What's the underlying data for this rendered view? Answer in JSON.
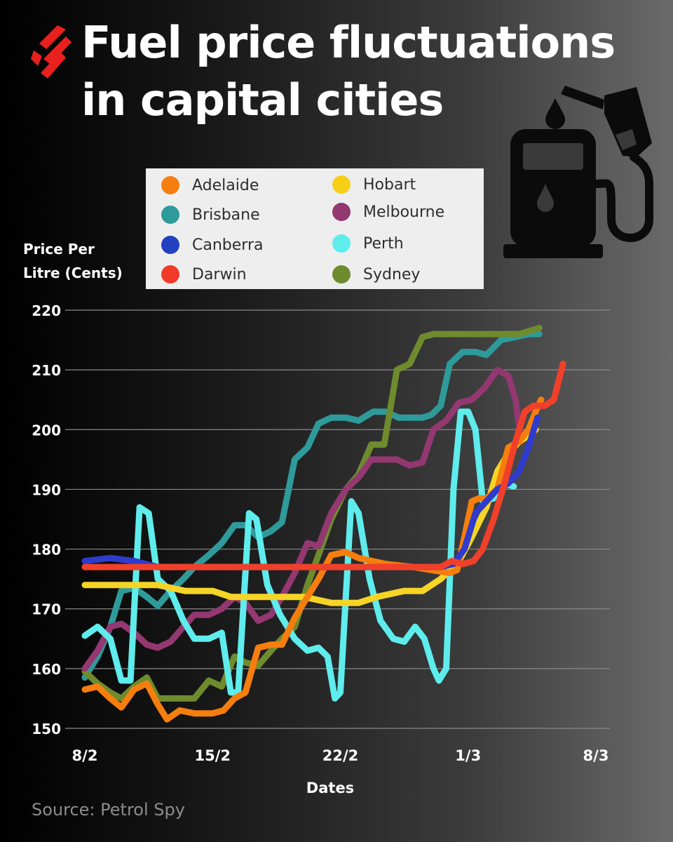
{
  "title": [
    "Fuel price fluctuations",
    "in capital cities"
  ],
  "source": "Source: Petrol Spy",
  "icons": [
    "brand-logo-icon",
    "fuel-pump-icon"
  ],
  "chart_data": {
    "type": "line",
    "ylabel": [
      "Price Per",
      "Litre (Cents)"
    ],
    "xlabel": "Dates",
    "ylim": [
      150,
      220
    ],
    "yticks": [
      150,
      160,
      170,
      180,
      190,
      200,
      210,
      220
    ],
    "xticks": [
      {
        "label": "8/2",
        "day": 0
      },
      {
        "label": "15/2",
        "day": 7
      },
      {
        "label": "22/2",
        "day": 14
      },
      {
        "label": "1/3",
        "day": 21
      },
      {
        "label": "8/3",
        "day": 28
      }
    ],
    "grid": "horizontal",
    "legend_position": "top",
    "series": [
      {
        "name": "Brisbane",
        "color": "#2f9a9a",
        "points": [
          [
            0,
            158.5
          ],
          [
            0.7,
            162
          ],
          [
            1.4,
            167
          ],
          [
            2,
            173
          ],
          [
            2.7,
            173.5
          ],
          [
            3.4,
            172
          ],
          [
            4,
            170.5
          ],
          [
            4.7,
            173
          ],
          [
            5.4,
            175
          ],
          [
            6,
            177
          ],
          [
            6.8,
            179
          ],
          [
            7.5,
            181
          ],
          [
            8.2,
            184
          ],
          [
            8.8,
            184
          ],
          [
            9.5,
            182
          ],
          [
            10.2,
            183
          ],
          [
            10.8,
            184.5
          ],
          [
            11.5,
            195
          ],
          [
            12.2,
            197
          ],
          [
            12.8,
            201
          ],
          [
            13.5,
            202
          ],
          [
            14.3,
            202
          ],
          [
            15,
            201.5
          ],
          [
            15.8,
            203
          ],
          [
            16.5,
            203
          ],
          [
            17.2,
            202
          ],
          [
            17.8,
            202
          ],
          [
            18.5,
            202
          ],
          [
            19,
            202.5
          ],
          [
            19.5,
            204
          ],
          [
            20,
            211
          ],
          [
            20.7,
            213
          ],
          [
            21.4,
            213
          ],
          [
            22,
            212.5
          ],
          [
            22.8,
            215
          ],
          [
            23.6,
            215.5
          ],
          [
            24.3,
            216
          ],
          [
            24.9,
            216
          ]
        ]
      },
      {
        "name": "Sydney",
        "color": "#6e8b2e",
        "points": [
          [
            0,
            159.5
          ],
          [
            0.7,
            157.5
          ],
          [
            1.4,
            156
          ],
          [
            2,
            155
          ],
          [
            2.7,
            157
          ],
          [
            3.4,
            158.5
          ],
          [
            4,
            155
          ],
          [
            4.7,
            155
          ],
          [
            5.4,
            155
          ],
          [
            6,
            155
          ],
          [
            6.8,
            158
          ],
          [
            7.5,
            157
          ],
          [
            8.2,
            162
          ],
          [
            8.8,
            161
          ],
          [
            9.5,
            160.5
          ],
          [
            10.2,
            163
          ],
          [
            10.8,
            165
          ],
          [
            11.5,
            167
          ],
          [
            12.2,
            174
          ],
          [
            12.8,
            179
          ],
          [
            13.5,
            185
          ],
          [
            14.3,
            190
          ],
          [
            15,
            192.5
          ],
          [
            15.7,
            197.5
          ],
          [
            16.4,
            197.5
          ],
          [
            17.1,
            210
          ],
          [
            17.8,
            211
          ],
          [
            18.5,
            215.5
          ],
          [
            19.1,
            216
          ],
          [
            19.8,
            216
          ],
          [
            20.6,
            216
          ],
          [
            21.4,
            216
          ],
          [
            22.2,
            216
          ],
          [
            23,
            216
          ],
          [
            23.8,
            216
          ],
          [
            24.9,
            217
          ]
        ]
      },
      {
        "name": "Melbourne",
        "color": "#933870",
        "points": [
          [
            0,
            160
          ],
          [
            0.7,
            163
          ],
          [
            1.4,
            167
          ],
          [
            2,
            167.5
          ],
          [
            2.7,
            166
          ],
          [
            3.4,
            164
          ],
          [
            4,
            163.5
          ],
          [
            4.7,
            164.5
          ],
          [
            5.4,
            167
          ],
          [
            6,
            169
          ],
          [
            6.8,
            169
          ],
          [
            7.5,
            170
          ],
          [
            8.2,
            172
          ],
          [
            8.8,
            171
          ],
          [
            9.5,
            168
          ],
          [
            10.2,
            169
          ],
          [
            10.8,
            172
          ],
          [
            11.5,
            176
          ],
          [
            12.2,
            181
          ],
          [
            12.8,
            180.5
          ],
          [
            13.5,
            186
          ],
          [
            14.3,
            190
          ],
          [
            15,
            192
          ],
          [
            15.7,
            195
          ],
          [
            16.4,
            195
          ],
          [
            17.1,
            195
          ],
          [
            17.8,
            194
          ],
          [
            18.5,
            194.5
          ],
          [
            19.1,
            200
          ],
          [
            19.8,
            201.5
          ],
          [
            20.5,
            204.5
          ],
          [
            21.2,
            205
          ],
          [
            21.9,
            207
          ],
          [
            22.6,
            210
          ],
          [
            23.2,
            209
          ],
          [
            23.6,
            205
          ],
          [
            23.9,
            198
          ]
        ]
      },
      {
        "name": "Perth",
        "color": "#5fecec",
        "points": [
          [
            0,
            165.5
          ],
          [
            0.7,
            167
          ],
          [
            1.4,
            165
          ],
          [
            2,
            158
          ],
          [
            2.5,
            158
          ],
          [
            3.0,
            187
          ],
          [
            3.5,
            186
          ],
          [
            4,
            175
          ],
          [
            4.7,
            173
          ],
          [
            5.4,
            168
          ],
          [
            6,
            165
          ],
          [
            6.8,
            165
          ],
          [
            7.5,
            166
          ],
          [
            8.0,
            156
          ],
          [
            8.4,
            156
          ],
          [
            9.0,
            186
          ],
          [
            9.4,
            185
          ],
          [
            10,
            174
          ],
          [
            10.7,
            169
          ],
          [
            11.5,
            165
          ],
          [
            12.2,
            163
          ],
          [
            12.8,
            163.5
          ],
          [
            13.3,
            162
          ],
          [
            13.7,
            155
          ],
          [
            14.0,
            156
          ],
          [
            14.6,
            188
          ],
          [
            15.0,
            186
          ],
          [
            15.6,
            175
          ],
          [
            16.2,
            168
          ],
          [
            16.9,
            165
          ],
          [
            17.5,
            164.5
          ],
          [
            18.1,
            167
          ],
          [
            18.6,
            165
          ],
          [
            19.1,
            160
          ],
          [
            19.4,
            158
          ],
          [
            19.8,
            160
          ],
          [
            20.2,
            190
          ],
          [
            20.6,
            203
          ],
          [
            21.0,
            203
          ],
          [
            21.4,
            200
          ],
          [
            21.8,
            188
          ],
          [
            22.4,
            188.5
          ],
          [
            22.9,
            191
          ],
          [
            23.5,
            190.5
          ]
        ]
      },
      {
        "name": "Hobart",
        "color": "#f5d426",
        "points": [
          [
            0,
            174
          ],
          [
            2,
            174
          ],
          [
            4,
            174
          ],
          [
            5.5,
            173
          ],
          [
            7,
            173
          ],
          [
            8,
            172
          ],
          [
            10,
            172
          ],
          [
            12,
            172
          ],
          [
            13.5,
            171
          ],
          [
            15,
            171
          ],
          [
            16,
            172
          ],
          [
            17.5,
            173
          ],
          [
            18.5,
            173
          ],
          [
            19.5,
            175
          ],
          [
            20.5,
            178
          ],
          [
            21.2,
            182
          ],
          [
            22,
            187
          ],
          [
            22.6,
            193
          ],
          [
            23.2,
            196
          ],
          [
            23.8,
            198
          ],
          [
            24.3,
            199
          ],
          [
            24.7,
            200
          ]
        ]
      },
      {
        "name": "Adelaide",
        "color": "#f57e0e",
        "points": [
          [
            0,
            156.5
          ],
          [
            0.7,
            157
          ],
          [
            1.4,
            155
          ],
          [
            2,
            153.5
          ],
          [
            2.7,
            156.5
          ],
          [
            3.4,
            157.5
          ],
          [
            4,
            154
          ],
          [
            4.5,
            151.5
          ],
          [
            5.2,
            153
          ],
          [
            6,
            152.5
          ],
          [
            7,
            152.5
          ],
          [
            7.6,
            153
          ],
          [
            8.2,
            155
          ],
          [
            8.8,
            156
          ],
          [
            9.5,
            163.5
          ],
          [
            10.2,
            164
          ],
          [
            10.8,
            164
          ],
          [
            11.5,
            168.5
          ],
          [
            12.2,
            172
          ],
          [
            12.8,
            175
          ],
          [
            13.5,
            179
          ],
          [
            14.3,
            179.5
          ],
          [
            15,
            178.5
          ],
          [
            16.5,
            177.5
          ],
          [
            18,
            177
          ],
          [
            19,
            176.5
          ],
          [
            20,
            176
          ],
          [
            20.4,
            176.5
          ],
          [
            20.8,
            182
          ],
          [
            21.2,
            188
          ],
          [
            21.6,
            188.5
          ],
          [
            22,
            188.5
          ],
          [
            22.6,
            190
          ],
          [
            23.2,
            197
          ],
          [
            23.8,
            198
          ],
          [
            24.3,
            200
          ],
          [
            24.7,
            203
          ],
          [
            25,
            205
          ]
        ]
      },
      {
        "name": "Canberra",
        "color": "#2f3bcc",
        "points": [
          [
            0,
            178
          ],
          [
            1.4,
            178.5
          ],
          [
            2.7,
            178
          ],
          [
            4,
            177
          ],
          [
            8,
            177
          ],
          [
            12,
            177
          ],
          [
            16,
            177
          ],
          [
            18,
            177
          ],
          [
            19.5,
            177
          ],
          [
            20.2,
            177.5
          ],
          [
            20.8,
            180
          ],
          [
            21.4,
            186
          ],
          [
            22,
            188
          ],
          [
            22.6,
            190
          ],
          [
            23.2,
            191
          ],
          [
            23.8,
            193
          ],
          [
            24.3,
            197
          ],
          [
            24.8,
            202
          ]
        ]
      },
      {
        "name": "Darwin",
        "color": "#f0402a",
        "points": [
          [
            0,
            177
          ],
          [
            4,
            177
          ],
          [
            8,
            177
          ],
          [
            12,
            177
          ],
          [
            15,
            177
          ],
          [
            18,
            177
          ],
          [
            19.5,
            177
          ],
          [
            20.1,
            178
          ],
          [
            20.7,
            177.5
          ],
          [
            21.3,
            178
          ],
          [
            21.8,
            180
          ],
          [
            22.4,
            185
          ],
          [
            23,
            191
          ],
          [
            23.6,
            198
          ],
          [
            24.1,
            203
          ],
          [
            24.6,
            204
          ],
          [
            25.2,
            204
          ],
          [
            25.7,
            205
          ],
          [
            26.2,
            211
          ]
        ]
      }
    ]
  },
  "legend_columns": [
    [
      "Adelaide",
      "Brisbane",
      "Canberra",
      "Darwin"
    ],
    [
      "Hobart",
      "Melbourne",
      "Perth",
      "Sydney"
    ]
  ],
  "legend_colors": {
    "Adelaide": "#f57e0e",
    "Brisbane": "#2f9a9a",
    "Canberra": "#2340c0",
    "Darwin": "#f23a2a",
    "Hobart": "#f7cf16",
    "Melbourne": "#933870",
    "Perth": "#5fecec",
    "Sydney": "#6e8b2e"
  }
}
